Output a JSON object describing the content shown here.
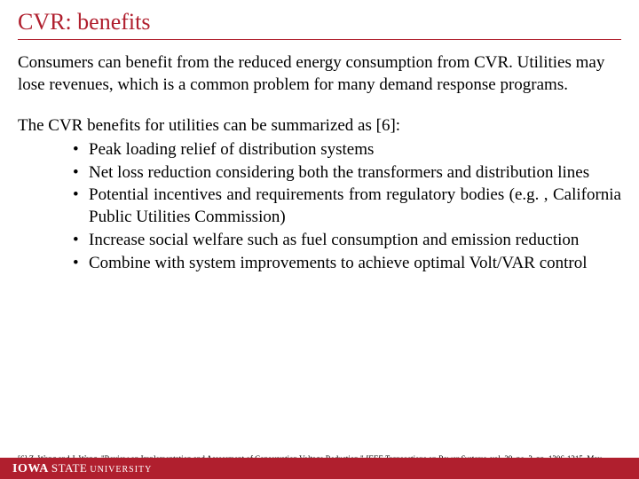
{
  "title": "CVR: benefits",
  "intro": "Consumers can benefit from the reduced energy consumption from CVR. Utilities may lose revenues, which is a common problem for many demand response programs.",
  "summary_line": "The CVR benefits for utilities can be summarized as [6]:",
  "bullets": [
    "Peak loading relief of distribution systems",
    "Net loss reduction considering both the transformers and distribution lines",
    "Potential incentives and requirements from regulatory bodies (e.g. , California Public Utilities Commission)",
    "Increase social welfare such as fuel consumption and emission reduction",
    "Combine with system improvements to achieve optimal Volt/VAR control"
  ],
  "reference": {
    "prefix": "[6] Z. Wang and J. Wang, \"Review on Implementation and Assessment of Conservation Voltage Reduction,\" ",
    "journal": "IEEE Transactions on Power Systems",
    "suffix": ", vol. 29, no. 3, pp. 1306-1315, May 2014."
  },
  "footer": {
    "iowa": "IOWA",
    "state": "STATE",
    "university": "UNIVERSITY"
  },
  "colors": {
    "accent": "#b01f2e",
    "text": "#000000",
    "background": "#ffffff"
  },
  "typography": {
    "title_fontsize": 26,
    "body_fontsize": 19,
    "reference_fontsize": 9,
    "font_family": "Georgia, Times New Roman, serif"
  }
}
